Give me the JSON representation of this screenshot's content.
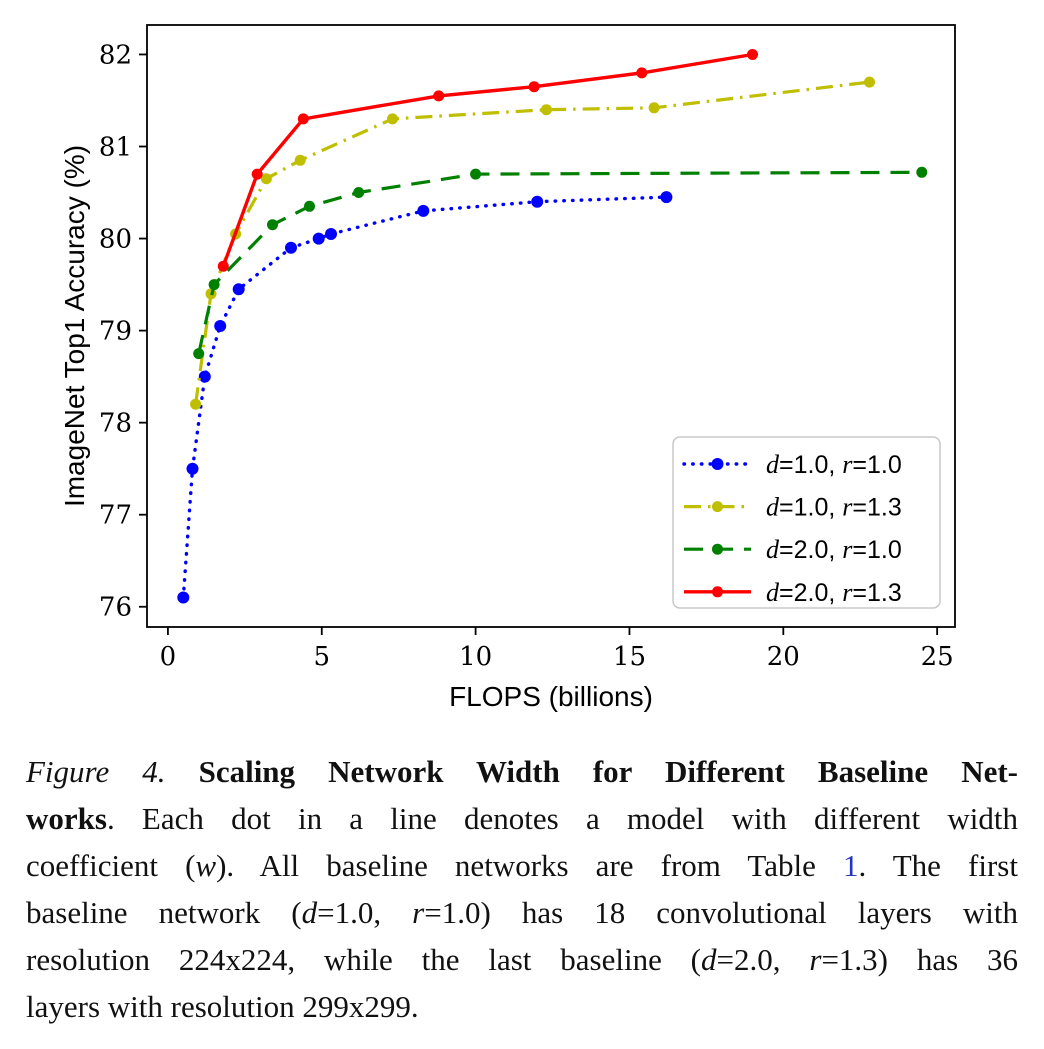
{
  "chart_data": {
    "type": "line",
    "title": "",
    "xlabel": "FLOPS (billions)",
    "ylabel": "ImageNet Top1 Accuracy (%)",
    "xlim": [
      -0.68,
      25.58
    ],
    "ylim": [
      75.78,
      82.32
    ],
    "xticks": [
      0,
      5,
      10,
      15,
      20,
      25
    ],
    "yticks": [
      76,
      77,
      78,
      79,
      80,
      81,
      82
    ],
    "grid": false,
    "legend": {
      "position": "lower right",
      "border_color": "#c8c8c8",
      "background": "#ffffff"
    },
    "series": [
      {
        "name": "d=1.0, r=1.0",
        "label": {
          "d": "1.0",
          "r": "1.0"
        },
        "color": "#0000ff",
        "linestyle": "dotted",
        "marker": "circle",
        "points": [
          [
            0.5,
            76.1
          ],
          [
            0.8,
            77.5
          ],
          [
            1.2,
            78.5
          ],
          [
            1.7,
            79.05
          ],
          [
            2.3,
            79.45
          ],
          [
            4.0,
            79.9
          ],
          [
            4.9,
            80.0
          ],
          [
            5.3,
            80.05
          ],
          [
            8.3,
            80.3
          ],
          [
            12.0,
            80.4
          ],
          [
            16.2,
            80.45
          ]
        ]
      },
      {
        "name": "d=1.0, r=1.3",
        "label": {
          "d": "1.0",
          "r": "1.3"
        },
        "color": "#bfbf00",
        "linestyle": "dashdot",
        "marker": "circle",
        "points": [
          [
            0.9,
            78.2
          ],
          [
            1.4,
            79.4
          ],
          [
            2.2,
            80.05
          ],
          [
            3.2,
            80.65
          ],
          [
            4.3,
            80.85
          ],
          [
            7.3,
            81.3
          ],
          [
            12.3,
            81.4
          ],
          [
            15.8,
            81.42
          ],
          [
            22.8,
            81.7
          ]
        ]
      },
      {
        "name": "d=2.0, r=1.0",
        "label": {
          "d": "2.0",
          "r": "1.0"
        },
        "color": "#008000",
        "linestyle": "dashed",
        "marker": "circle",
        "points": [
          [
            1.0,
            78.75
          ],
          [
            1.5,
            79.5
          ],
          [
            3.4,
            80.15
          ],
          [
            4.6,
            80.35
          ],
          [
            6.2,
            80.5
          ],
          [
            10.0,
            80.7
          ],
          [
            24.5,
            80.72
          ]
        ]
      },
      {
        "name": "d=2.0, r=1.3",
        "label": {
          "d": "2.0",
          "r": "1.3"
        },
        "color": "#ff0000",
        "linestyle": "solid",
        "marker": "circle",
        "points": [
          [
            1.8,
            79.7
          ],
          [
            2.9,
            80.7
          ],
          [
            4.4,
            81.3
          ],
          [
            8.8,
            81.55
          ],
          [
            11.9,
            81.65
          ],
          [
            15.4,
            81.8
          ],
          [
            19.0,
            82.0
          ]
        ]
      }
    ]
  },
  "caption": {
    "figure_label": "Figure 4.",
    "full_text": "Figure 4. Scaling Network Width for Different Baseline Networks.  Each dot in a line denotes a model with different width coefficient (w). All baseline networks are from Table 1. The first baseline network (d=1.0, r=1.0) has 18 convolutional layers with resolution 224x224, while the last baseline (d=2.0, r=1.3) has 36 layers with resolution 299x299.",
    "lines": [
      [
        {
          "s": "i",
          "t": "Figure 4."
        },
        {
          "s": "b",
          "t": " Scaling Network Width for Different Baseline Net-"
        }
      ],
      [
        {
          "s": "b",
          "t": "works"
        },
        {
          "s": "n",
          "t": ".  Each dot in a line denotes a model with different width"
        }
      ],
      [
        {
          "s": "n",
          "t": "coefficient ("
        },
        {
          "s": "i",
          "t": "w"
        },
        {
          "s": "n",
          "t": "). All baseline networks are from Table "
        },
        {
          "s": "link",
          "t": "1"
        },
        {
          "s": "n",
          "t": ". The first"
        }
      ],
      [
        {
          "s": "n",
          "t": "baseline network ("
        },
        {
          "s": "i",
          "t": "d"
        },
        {
          "s": "n",
          "t": "=1.0, "
        },
        {
          "s": "i",
          "t": "r"
        },
        {
          "s": "n",
          "t": "=1.0) has 18 convolutional layers with"
        }
      ],
      [
        {
          "s": "n",
          "t": "resolution 224x224, while the last baseline ("
        },
        {
          "s": "i",
          "t": "d"
        },
        {
          "s": "n",
          "t": "=2.0, "
        },
        {
          "s": "i",
          "t": "r"
        },
        {
          "s": "n",
          "t": "=1.3) has 36"
        }
      ],
      [
        {
          "s": "n",
          "t": "layers with resolution 299x299."
        }
      ]
    ]
  }
}
